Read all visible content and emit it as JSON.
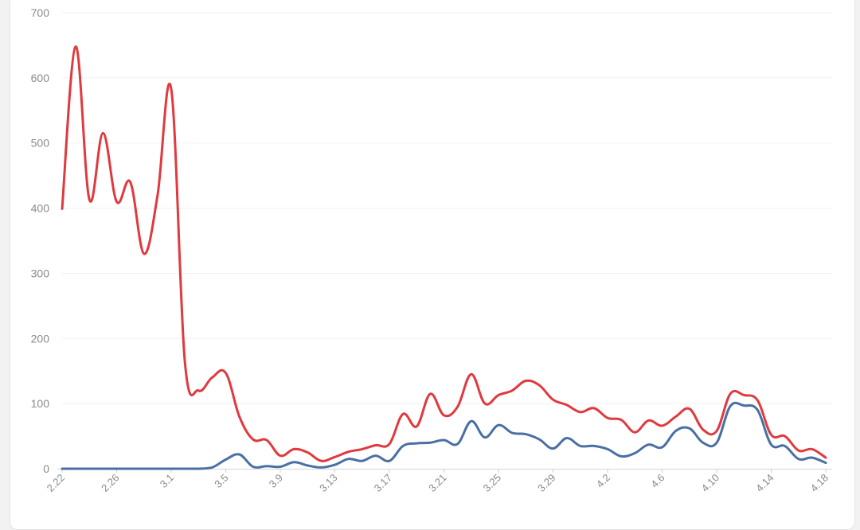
{
  "chart_data": {
    "type": "line",
    "title": "",
    "xlabel": "",
    "ylabel": "",
    "ylim": [
      0,
      700
    ],
    "yticks": [
      0,
      100,
      200,
      300,
      400,
      500,
      600,
      700
    ],
    "grid": "horizontal",
    "x": [
      "2.22",
      "2.23",
      "2.24",
      "2.25",
      "2.26",
      "2.27",
      "2.28",
      "2.29",
      "3.1",
      "3.2",
      "3.3",
      "3.4",
      "3.5",
      "3.6",
      "3.7",
      "3.8",
      "3.9",
      "3.10",
      "3.11",
      "3.12",
      "3.13",
      "3.14",
      "3.15",
      "3.16",
      "3.17",
      "3.18",
      "3.19",
      "3.20",
      "3.21",
      "3.22",
      "3.23",
      "3.24",
      "3.25",
      "3.26",
      "3.27",
      "3.28",
      "3.29",
      "3.30",
      "3.31",
      "4.1",
      "4.2",
      "4.3",
      "4.4",
      "4.5",
      "4.6",
      "4.7",
      "4.8",
      "4.9",
      "4.10",
      "4.11",
      "4.12",
      "4.13",
      "4.14",
      "4.15",
      "4.16",
      "4.17",
      "4.18"
    ],
    "x_tick_labels": [
      "2.22",
      "2.26",
      "3.1",
      "3.5",
      "3.9",
      "3.13",
      "3.17",
      "3.21",
      "3.25",
      "3.29",
      "4.2",
      "4.6",
      "4.10",
      "4.14",
      "4.18"
    ],
    "series": [
      {
        "color": "#e0393e",
        "values": [
          399,
          648,
          413,
          515,
          410,
          440,
          330,
          420,
          583,
          165,
          120,
          140,
          147,
          80,
          45,
          44,
          20,
          30,
          25,
          12,
          18,
          26,
          30,
          36,
          38,
          84,
          65,
          115,
          82,
          95,
          145,
          100,
          113,
          120,
          135,
          128,
          106,
          98,
          87,
          93,
          78,
          75,
          56,
          74,
          66,
          80,
          92,
          60,
          58,
          115,
          113,
          105,
          52,
          50,
          28,
          30,
          17
        ]
      },
      {
        "color": "#4a6fa5",
        "values": [
          0,
          0,
          0,
          0,
          0,
          0,
          0,
          0,
          0,
          0,
          0,
          2,
          14,
          22,
          3,
          4,
          3,
          10,
          5,
          2,
          6,
          15,
          12,
          20,
          12,
          35,
          39,
          40,
          44,
          38,
          73,
          48,
          67,
          55,
          53,
          45,
          31,
          47,
          35,
          35,
          30,
          19,
          24,
          37,
          33,
          58,
          62,
          40,
          40,
          96,
          97,
          90,
          37,
          35,
          15,
          17,
          9
        ]
      }
    ]
  }
}
